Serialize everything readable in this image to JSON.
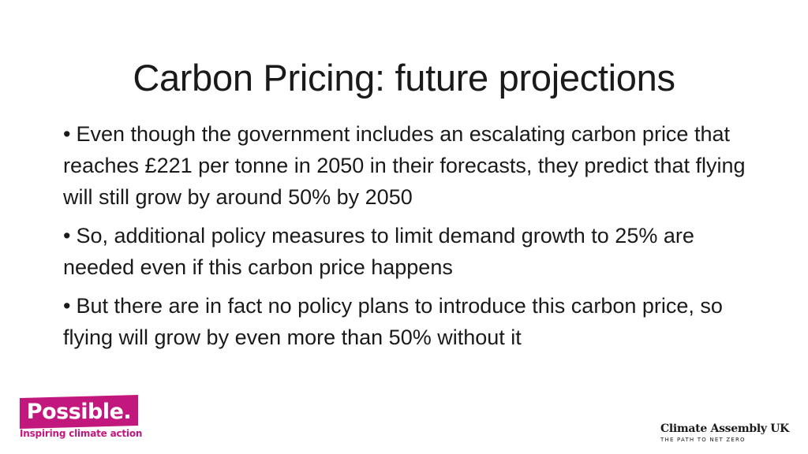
{
  "slide": {
    "title": "Carbon Pricing: future projections",
    "bullets": [
      "Even though the government includes an escalating carbon price that reaches £221 per tonne in 2050 in their forecasts, they predict that flying will still grow by around 50% by 2050",
      "So, additional policy measures to limit demand growth to 25% are needed even if this carbon price happens",
      "But there are in fact no policy plans to introduce this carbon price, so flying will grow by even more than 50% without it"
    ],
    "bullet_glyph": "•"
  },
  "logos": {
    "possible": {
      "name": "Possible.",
      "tagline": "Inspiring climate action",
      "color": "#c2187e"
    },
    "climate_assembly": {
      "name": "Climate Assembly UK",
      "tagline": "THE PATH TO NET ZERO"
    }
  }
}
